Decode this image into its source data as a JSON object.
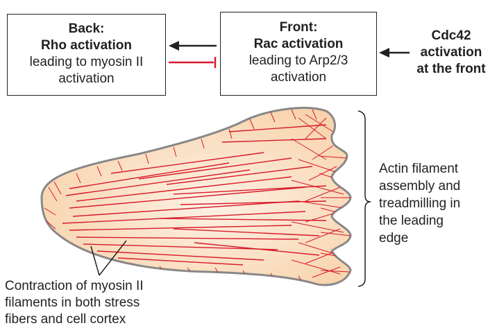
{
  "back_box": {
    "title": "Back:",
    "subtitle": "Rho activation",
    "line1": "leading to myosin II",
    "line2": "activation"
  },
  "front_box": {
    "title": "Front:",
    "subtitle": "Rac activation",
    "line1": "leading to Arp2/3",
    "line2": "activation"
  },
  "cdc42": {
    "line1": "Cdc42",
    "line2": "activation",
    "line3": "at the front"
  },
  "leading_edge_label": {
    "line1": "Actin filament",
    "line2": "assembly and",
    "line3": "treadmilling in",
    "line4": "the leading",
    "line5": "edge"
  },
  "contraction_label": {
    "line1": "Contraction of myosin II",
    "line2": "filaments in both stress",
    "line3": "fibers and cell cortex"
  },
  "colors": {
    "filament": "#d7192a",
    "cell_fill": "#fbe1c6",
    "outline": "#888888",
    "text": "#231f20"
  }
}
